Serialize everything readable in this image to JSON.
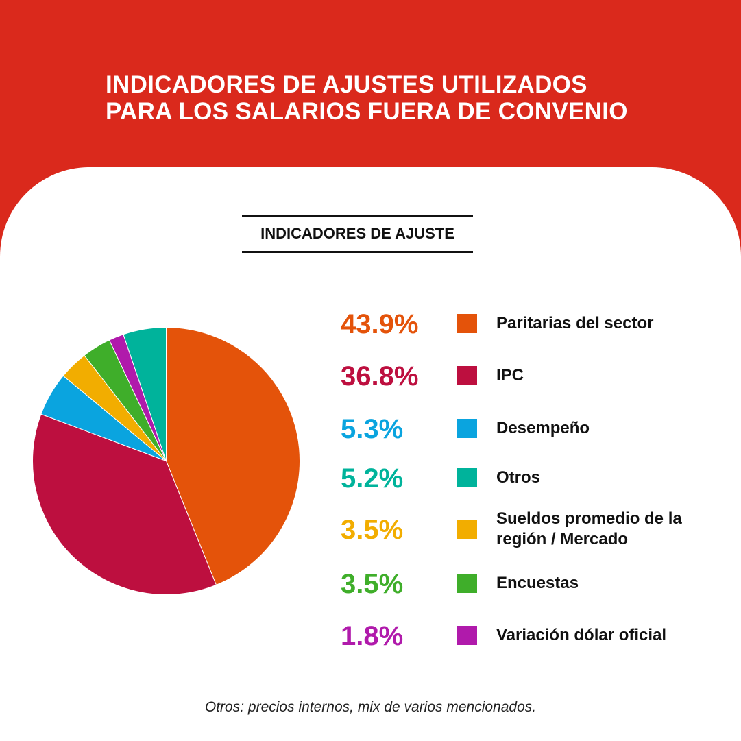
{
  "header": {
    "title_line1": "INDICADORES DE AJUSTES UTILIZADOS",
    "title_line2": "PARA LOS SALARIOS FUERA DE CONVENIO"
  },
  "section_title": "INDICADORES DE AJUSTE",
  "colors": {
    "header_background": "#da291c",
    "card_background": "#ffffff"
  },
  "chart_data": {
    "type": "pie",
    "start": "12 o'clock",
    "direction": "clockwise",
    "slices": [
      {
        "label": "Paritarias del sector",
        "value": 43.9,
        "display": "43.9%",
        "color": "#e4530a"
      },
      {
        "label": "IPC",
        "value": 36.8,
        "display": "36.8%",
        "color": "#bd0f3f"
      },
      {
        "label": "Desempeño",
        "value": 5.3,
        "display": "5.3%",
        "color": "#0aa4df"
      },
      {
        "label": "Sueldos promedio de la región / Mercado",
        "value": 3.5,
        "display": "3.5%",
        "color": "#f2ad00"
      },
      {
        "label": "Encuestas",
        "value": 3.5,
        "display": "3.5%",
        "color": "#3fae2a"
      },
      {
        "label": "Variación dólar oficial",
        "value": 1.8,
        "display": "1.8%",
        "color": "#b01aab"
      },
      {
        "label": "Otros",
        "value": 5.2,
        "display": "5.2%",
        "color": "#00b39b"
      }
    ]
  },
  "legend": [
    {
      "value": "43.9%",
      "label": "Paritarias del sector",
      "color": "#e4530a"
    },
    {
      "value": "36.8%",
      "label": "IPC",
      "color": "#bd0f3f"
    },
    {
      "value": "5.3%",
      "label": "Desempeño",
      "color": "#0aa4df"
    },
    {
      "value": "5.2%",
      "label": "Otros",
      "color": "#00b39b"
    },
    {
      "value": "3.5%",
      "label": "Sueldos promedio de la región / Mercado",
      "color": "#f2ad00"
    },
    {
      "value": "3.5%",
      "label": "Encuestas",
      "color": "#3fae2a"
    },
    {
      "value": "1.8%",
      "label": "Variación dólar oficial",
      "color": "#b01aab"
    }
  ],
  "footnote": {
    "term": "Otros:",
    "text": " precios internos, mix de varios mencionados."
  }
}
